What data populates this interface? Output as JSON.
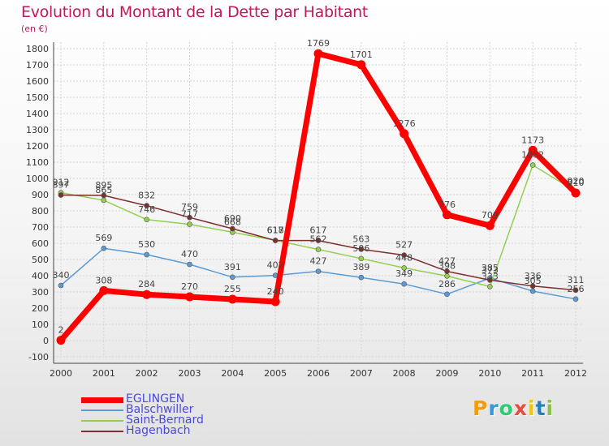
{
  "header": {
    "title": "Evolution du Montant de la Dette par Habitant",
    "unit": "(en €)"
  },
  "logo": {
    "text": "Proxiti"
  },
  "colors": {
    "EGLINGEN": "#ff0000",
    "Balschwiller": "#5b9bd5",
    "Saint-Bernard": "#92d050",
    "Hagenbach": "#7f2f2f",
    "title": "#c2185b",
    "legend_text": "#4a4ad8"
  },
  "chart_data": {
    "type": "line",
    "title": "Evolution du Montant de la Dette par Habitant",
    "ylabel": "(en €)",
    "x": [
      2000,
      2001,
      2002,
      2003,
      2004,
      2005,
      2006,
      2007,
      2008,
      2009,
      2010,
      2011,
      2012
    ],
    "ylim": [
      -100,
      1800
    ],
    "yticks": [
      -100,
      0,
      100,
      200,
      300,
      400,
      500,
      600,
      700,
      800,
      900,
      1000,
      1100,
      1200,
      1300,
      1400,
      1500,
      1600,
      1700,
      1800
    ],
    "grid": true,
    "legend_position": "bottom-left",
    "series": [
      {
        "name": "EGLINGEN",
        "values": [
          2,
          308,
          284,
          270,
          255,
          240,
          1769,
          1701,
          1276,
          776,
          709,
          1173,
          910
        ]
      },
      {
        "name": "Balschwiller",
        "values": [
          340,
          569,
          530,
          470,
          391,
          402,
          427,
          389,
          349,
          286,
          385,
          305,
          256
        ]
      },
      {
        "name": "Saint-Bernard",
        "values": [
          912,
          865,
          746,
          717,
          668,
          618,
          562,
          506,
          448,
          398,
          333,
          1082,
          920
        ]
      },
      {
        "name": "Hagenbach",
        "values": [
          897,
          895,
          832,
          759,
          690,
          617,
          617,
          563,
          527,
          427,
          373,
          336,
          311
        ]
      }
    ]
  }
}
